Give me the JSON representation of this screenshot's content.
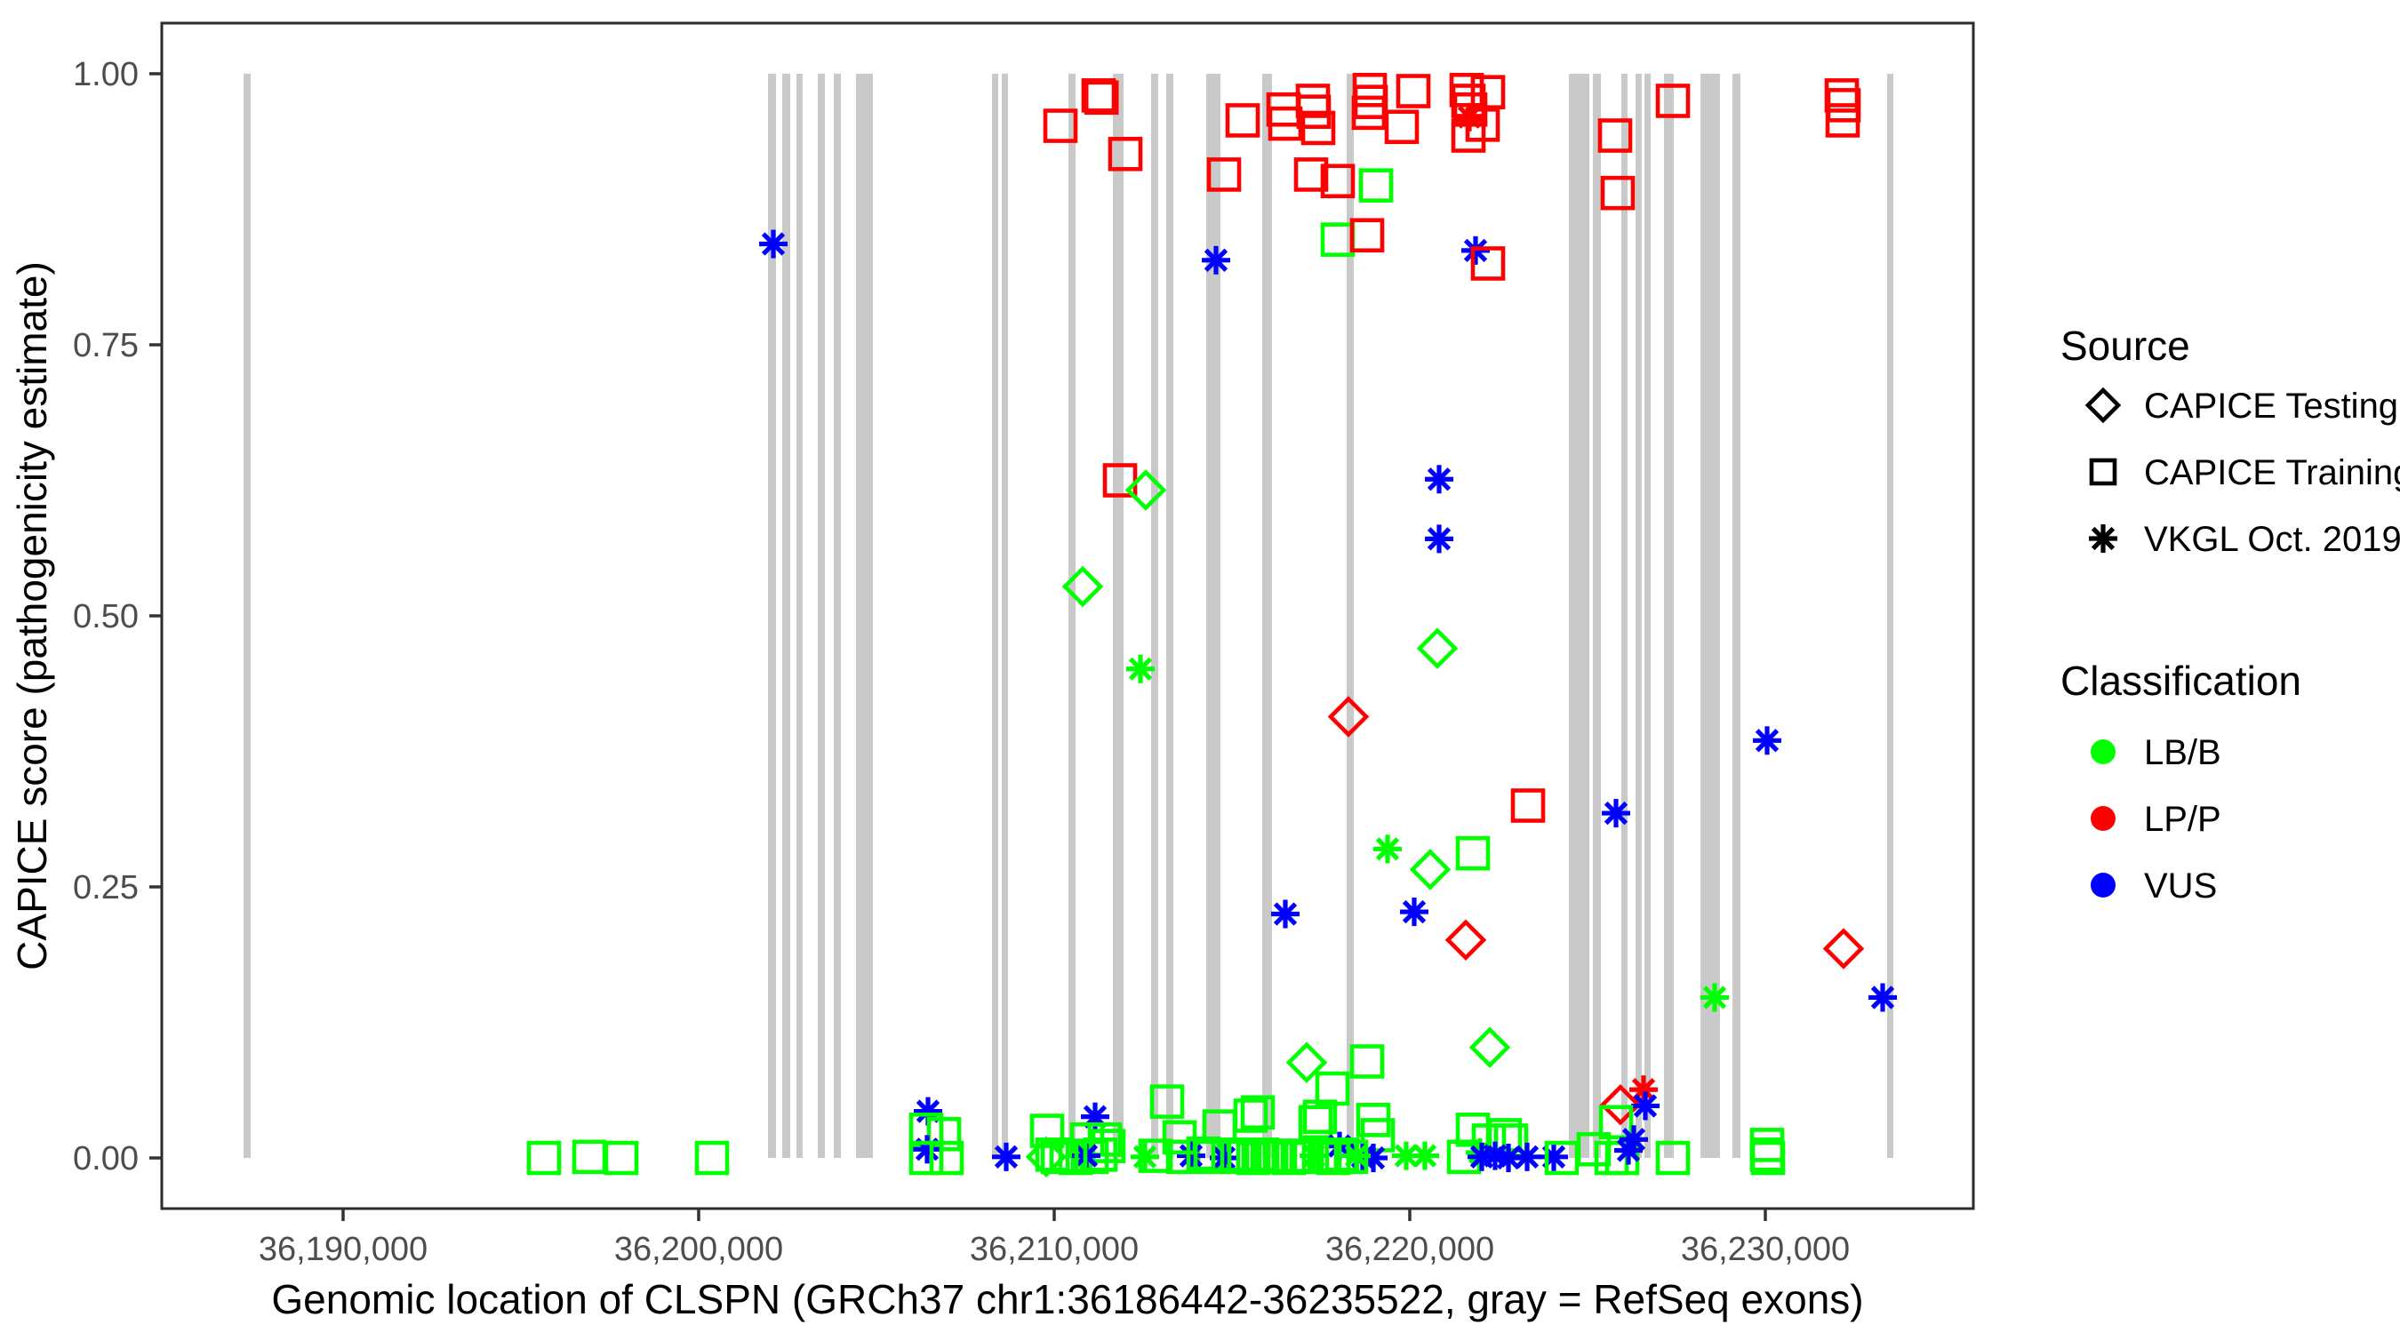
{
  "axes": {
    "x_title": "Genomic location of CLSPN (GRCh37 chr1:36186442-36235522, gray = RefSeq exons)",
    "y_title": "CAPICE score (pathogenicity estimate)"
  },
  "legend": {
    "source_title": "Source",
    "source_items": [
      {
        "label": "CAPICE Testing",
        "shape": "diamond"
      },
      {
        "label": "CAPICE Training",
        "shape": "square"
      },
      {
        "label": "VKGL Oct. 2019",
        "shape": "asterisk"
      }
    ],
    "class_title": "Classification",
    "class_items": [
      {
        "label": "LB/B",
        "color": "#00FF00"
      },
      {
        "label": "LP/P",
        "color": "#FF0000"
      },
      {
        "label": "VUS",
        "color": "#0000FF"
      }
    ]
  },
  "colors": {
    "lbb": "#00FF00",
    "lpp": "#FF0000",
    "vus": "#0000FF",
    "exon": "#C9C9C9",
    "tick_text": "#4D4D4D",
    "panel_border": "#2b2b2b"
  },
  "chart_data": {
    "type": "scatter",
    "title": "",
    "xlabel": "Genomic location of CLSPN (GRCh37 chr1:36186442-36235522, gray = RefSeq exons)",
    "ylabel": "CAPICE score (pathogenicity estimate)",
    "x_domain": [
      36184900,
      36235850
    ],
    "y_domain": [
      -0.0467,
      1.0467
    ],
    "grid": "off",
    "legend_position": "right",
    "x_ticks": [
      {
        "value": 36190000,
        "label": "36,190,000"
      },
      {
        "value": 36200000,
        "label": "36,200,000"
      },
      {
        "value": 36210000,
        "label": "36,210,000"
      },
      {
        "value": 36220000,
        "label": "36,220,000"
      },
      {
        "value": 36230000,
        "label": "36,230,000"
      }
    ],
    "y_ticks": [
      {
        "value": 0.0,
        "label": "0.00"
      },
      {
        "value": 0.25,
        "label": "0.25"
      },
      {
        "value": 0.5,
        "label": "0.50"
      },
      {
        "value": 0.75,
        "label": "0.75"
      },
      {
        "value": 1.0,
        "label": "1.00"
      }
    ],
    "exons_note": "gray rectangles, genomic start/end, drawn from score 0 to 1",
    "exons": [
      [
        36187200,
        36187400
      ],
      [
        36201950,
        36202175
      ],
      [
        36202350,
        36202575
      ],
      [
        36202750,
        36202900
      ],
      [
        36203350,
        36203550
      ],
      [
        36203800,
        36204000
      ],
      [
        36204425,
        36204900
      ],
      [
        36208250,
        36208375
      ],
      [
        36208525,
        36208650
      ],
      [
        36210400,
        36210600
      ],
      [
        36211650,
        36211950
      ],
      [
        36212725,
        36212925
      ],
      [
        36213150,
        36213350
      ],
      [
        36214275,
        36214675
      ],
      [
        36215850,
        36216125
      ],
      [
        36218225,
        36218425
      ],
      [
        36224475,
        36225050
      ],
      [
        36225150,
        36225375
      ],
      [
        36225950,
        36226125
      ],
      [
        36226350,
        36226500
      ],
      [
        36226600,
        36226750
      ],
      [
        36227150,
        36227425
      ],
      [
        36228175,
        36228725
      ],
      [
        36229075,
        36229300
      ],
      [
        36233425,
        36233600
      ]
    ],
    "shape_codes": {
      "s": "CAPICE Training (square)",
      "d": "CAPICE Testing (diamond)",
      "a": "VKGL Oct. 2019 (asterisk)"
    },
    "class_codes": {
      "g": "LB/B",
      "r": "LP/P",
      "b": "VUS"
    },
    "points_format": [
      "genomic_position",
      "capice_score",
      "shape_code",
      "class_code"
    ],
    "points": [
      [
        36211250,
        0.98,
        "s",
        "r"
      ],
      [
        36211330,
        0.978,
        "s",
        "r"
      ],
      [
        36210175,
        0.952,
        "s",
        "r"
      ],
      [
        36212000,
        0.926,
        "s",
        "r"
      ],
      [
        36215300,
        0.957,
        "s",
        "r"
      ],
      [
        36216450,
        0.967,
        "s",
        "r"
      ],
      [
        36216500,
        0.954,
        "s",
        "r"
      ],
      [
        36217275,
        0.975,
        "s",
        "r"
      ],
      [
        36217300,
        0.965,
        "s",
        "r"
      ],
      [
        36217425,
        0.95,
        "s",
        "r"
      ],
      [
        36218875,
        0.985,
        "s",
        "r"
      ],
      [
        36218900,
        0.974,
        "s",
        "r"
      ],
      [
        36218850,
        0.964,
        "s",
        "r"
      ],
      [
        36220100,
        0.984,
        "s",
        "r"
      ],
      [
        36219775,
        0.951,
        "s",
        "r"
      ],
      [
        36214775,
        0.907,
        "s",
        "r"
      ],
      [
        36217225,
        0.907,
        "s",
        "r"
      ],
      [
        36217975,
        0.901,
        "s",
        "r"
      ],
      [
        36219050,
        0.897,
        "s",
        "g"
      ],
      [
        36217975,
        0.847,
        "s",
        "g"
      ],
      [
        36218800,
        0.851,
        "s",
        "r"
      ],
      [
        36214550,
        0.828,
        "a",
        "b"
      ],
      [
        36221600,
        0.985,
        "s",
        "r"
      ],
      [
        36221650,
        0.975,
        "s",
        "r"
      ],
      [
        36221700,
        0.967,
        "s",
        "r"
      ],
      [
        36222200,
        0.983,
        "s",
        "r"
      ],
      [
        36221675,
        0.96,
        "a",
        "r"
      ],
      [
        36222050,
        0.953,
        "s",
        "r"
      ],
      [
        36221650,
        0.943,
        "s",
        "r"
      ],
      [
        36227400,
        0.975,
        "s",
        "r"
      ],
      [
        36225775,
        0.943,
        "s",
        "r"
      ],
      [
        36225850,
        0.89,
        "s",
        "r"
      ],
      [
        36221850,
        0.837,
        "a",
        "b"
      ],
      [
        36222200,
        0.825,
        "s",
        "r"
      ],
      [
        36232150,
        0.98,
        "s",
        "r"
      ],
      [
        36232200,
        0.971,
        "s",
        "r"
      ],
      [
        36232175,
        0.957,
        "s",
        "r"
      ],
      [
        36211850,
        0.625,
        "s",
        "r"
      ],
      [
        36212575,
        0.616,
        "d",
        "g"
      ],
      [
        36210800,
        0.527,
        "d",
        "g"
      ],
      [
        36212425,
        0.451,
        "a",
        "g"
      ],
      [
        36220825,
        0.626,
        "a",
        "b"
      ],
      [
        36220825,
        0.571,
        "a",
        "b"
      ],
      [
        36220775,
        0.47,
        "d",
        "g"
      ],
      [
        36218275,
        0.407,
        "d",
        "r"
      ],
      [
        36223325,
        0.325,
        "s",
        "r"
      ],
      [
        36225800,
        0.318,
        "a",
        "b"
      ],
      [
        36219375,
        0.285,
        "a",
        "g"
      ],
      [
        36221775,
        0.281,
        "s",
        "g"
      ],
      [
        36220575,
        0.266,
        "d",
        "g"
      ],
      [
        36220125,
        0.227,
        "a",
        "b"
      ],
      [
        36216500,
        0.225,
        "a",
        "b"
      ],
      [
        36221575,
        0.201,
        "d",
        "r"
      ],
      [
        36222250,
        0.102,
        "d",
        "g"
      ],
      [
        36217100,
        0.088,
        "d",
        "g"
      ],
      [
        36218800,
        0.089,
        "s",
        "g"
      ],
      [
        36217825,
        0.064,
        "s",
        "g"
      ],
      [
        36226575,
        0.063,
        "a",
        "r"
      ],
      [
        36225925,
        0.049,
        "d",
        "r"
      ],
      [
        36226625,
        0.048,
        "a",
        "b"
      ],
      [
        36230050,
        0.385,
        "a",
        "b"
      ],
      [
        36232200,
        0.193,
        "d",
        "r"
      ],
      [
        36233300,
        0.148,
        "a",
        "b"
      ],
      [
        36228575,
        0.148,
        "a",
        "g"
      ],
      [
        36195650,
        0.0,
        "s",
        "g"
      ],
      [
        36196925,
        0.001,
        "s",
        "g"
      ],
      [
        36197825,
        0.0,
        "s",
        "g"
      ],
      [
        36200375,
        0.0,
        "s",
        "g"
      ],
      [
        36202100,
        0.843,
        "a",
        "b"
      ],
      [
        36206450,
        0.043,
        "a",
        "b"
      ],
      [
        36206400,
        0.026,
        "s",
        "g"
      ],
      [
        36206900,
        0.022,
        "s",
        "g"
      ],
      [
        36206425,
        0.008,
        "a",
        "b"
      ],
      [
        36206975,
        0.0,
        "s",
        "g"
      ],
      [
        36206400,
        0.0,
        "s",
        "g"
      ],
      [
        36208650,
        0.001,
        "a",
        "b"
      ],
      [
        36209800,
        0.025,
        "s",
        "g"
      ],
      [
        36211150,
        0.038,
        "a",
        "b"
      ],
      [
        36210925,
        0.017,
        "s",
        "g"
      ],
      [
        36211425,
        0.017,
        "s",
        "g"
      ],
      [
        36211525,
        0.011,
        "s",
        "g"
      ],
      [
        36209775,
        0.001,
        "d",
        "g"
      ],
      [
        36209950,
        0.003,
        "s",
        "g"
      ],
      [
        36210100,
        0.001,
        "s",
        "g"
      ],
      [
        36210350,
        0.002,
        "s",
        "g"
      ],
      [
        36210600,
        0.0,
        "s",
        "g"
      ],
      [
        36210775,
        0.002,
        "a",
        "g"
      ],
      [
        36210900,
        0.002,
        "a",
        "b"
      ],
      [
        36211050,
        0.001,
        "s",
        "g"
      ],
      [
        36211300,
        0.003,
        "s",
        "g"
      ],
      [
        36212550,
        0.001,
        "a",
        "g"
      ],
      [
        36212850,
        0.002,
        "s",
        "g"
      ],
      [
        36213625,
        0.001,
        "s",
        "g"
      ],
      [
        36213850,
        0.002,
        "a",
        "b"
      ],
      [
        36214200,
        0.004,
        "s",
        "g"
      ],
      [
        36214400,
        0.001,
        "s",
        "g"
      ],
      [
        36214775,
        0.0,
        "a",
        "b"
      ],
      [
        36214900,
        0.003,
        "s",
        "g"
      ],
      [
        36213175,
        0.052,
        "s",
        "g"
      ],
      [
        36213525,
        0.019,
        "s",
        "g"
      ],
      [
        36214650,
        0.029,
        "s",
        "g"
      ],
      [
        36215525,
        0.039,
        "s",
        "g"
      ],
      [
        36215725,
        0.042,
        "s",
        "g"
      ],
      [
        36217350,
        0.033,
        "s",
        "g"
      ],
      [
        36217475,
        0.038,
        "s",
        "g"
      ],
      [
        36218975,
        0.035,
        "s",
        "g"
      ],
      [
        36219100,
        0.021,
        "s",
        "g"
      ],
      [
        36218025,
        0.011,
        "a",
        "b"
      ],
      [
        36218675,
        0.001,
        "a",
        "b"
      ],
      [
        36218975,
        0.0,
        "a",
        "b"
      ],
      [
        36219900,
        0.002,
        "a",
        "g"
      ],
      [
        36220425,
        0.002,
        "a",
        "g"
      ],
      [
        36215150,
        0.001,
        "s",
        "g"
      ],
      [
        36215350,
        0.002,
        "s",
        "g"
      ],
      [
        36215600,
        0.0,
        "s",
        "g"
      ],
      [
        36215850,
        0.003,
        "s",
        "g"
      ],
      [
        36216100,
        0.001,
        "s",
        "g"
      ],
      [
        36216350,
        0.002,
        "s",
        "g"
      ],
      [
        36216600,
        0.0,
        "s",
        "g"
      ],
      [
        36216850,
        0.002,
        "s",
        "g"
      ],
      [
        36217100,
        0.001,
        "s",
        "g"
      ],
      [
        36217300,
        0.002,
        "a",
        "g"
      ],
      [
        36217600,
        0.002,
        "s",
        "g"
      ],
      [
        36217850,
        0.0,
        "s",
        "g"
      ],
      [
        36218100,
        0.003,
        "s",
        "g"
      ],
      [
        36218350,
        0.001,
        "s",
        "g"
      ],
      [
        36218500,
        0.002,
        "a",
        "g"
      ],
      [
        36221775,
        0.026,
        "s",
        "g"
      ],
      [
        36222225,
        0.016,
        "s",
        "g"
      ],
      [
        36222675,
        0.021,
        "s",
        "g"
      ],
      [
        36222850,
        0.016,
        "s",
        "g"
      ],
      [
        36221525,
        0.001,
        "s",
        "g"
      ],
      [
        36221975,
        0.005,
        "a",
        "g"
      ],
      [
        36222025,
        0.001,
        "a",
        "b"
      ],
      [
        36222400,
        0.002,
        "a",
        "b"
      ],
      [
        36222775,
        0.0,
        "a",
        "b"
      ],
      [
        36223300,
        0.001,
        "a",
        "b"
      ],
      [
        36224050,
        0.001,
        "a",
        "b"
      ],
      [
        36224275,
        0.0,
        "s",
        "g"
      ],
      [
        36225175,
        0.008,
        "s",
        "g"
      ],
      [
        36225675,
        0.0,
        "s",
        "g"
      ],
      [
        36225975,
        0.0,
        "s",
        "g"
      ],
      [
        36225800,
        0.033,
        "s",
        "g"
      ],
      [
        36226300,
        0.017,
        "a",
        "b"
      ],
      [
        36226150,
        0.007,
        "a",
        "b"
      ],
      [
        36227400,
        0.0,
        "s",
        "g"
      ],
      [
        36230050,
        0.012,
        "s",
        "g"
      ],
      [
        36230050,
        0.003,
        "s",
        "g"
      ],
      [
        36230075,
        0.0,
        "s",
        "g"
      ]
    ]
  }
}
